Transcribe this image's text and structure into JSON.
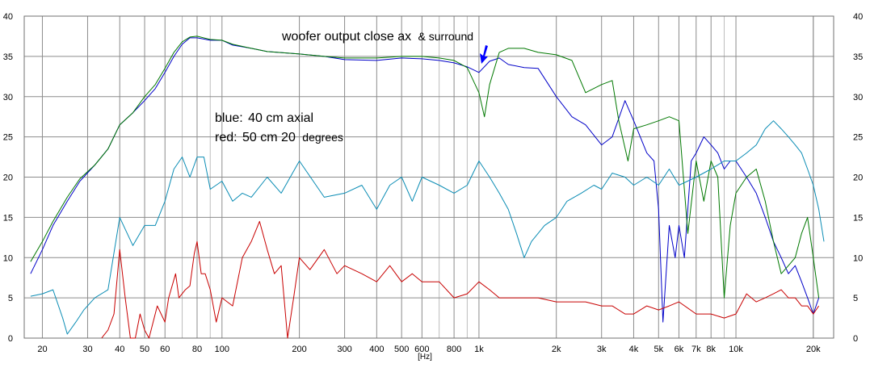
{
  "chart_data": {
    "type": "line",
    "title": "",
    "xlabel": "[Hz]",
    "ylabel": "",
    "x_scale": "log",
    "xlim": [
      17,
      24000
    ],
    "ylim": [
      0,
      40
    ],
    "grid": true,
    "x_tick_labels": [
      {
        "value": 20,
        "label": "20"
      },
      {
        "value": 30,
        "label": "30"
      },
      {
        "value": 40,
        "label": "40"
      },
      {
        "value": 50,
        "label": "50"
      },
      {
        "value": 60,
        "label": "60"
      },
      {
        "value": 80,
        "label": "80"
      },
      {
        "value": 100,
        "label": "100"
      },
      {
        "value": 200,
        "label": "200"
      },
      {
        "value": 300,
        "label": "300"
      },
      {
        "value": 400,
        "label": "400"
      },
      {
        "value": 500,
        "label": "500"
      },
      {
        "value": 600,
        "label": "600"
      },
      {
        "value": 800,
        "label": "800"
      },
      {
        "value": 1000,
        "label": "1k"
      },
      {
        "value": 2000,
        "label": "2k"
      },
      {
        "value": 3000,
        "label": "3k"
      },
      {
        "value": 4000,
        "label": "4k"
      },
      {
        "value": 5000,
        "label": "5k"
      },
      {
        "value": 6000,
        "label": "6k"
      },
      {
        "value": 7000,
        "label": "7k"
      },
      {
        "value": 8000,
        "label": "8k"
      },
      {
        "value": 10000,
        "label": "10k"
      },
      {
        "value": 20000,
        "label": "20k"
      }
    ],
    "y_ticks": [
      0,
      5,
      10,
      15,
      20,
      25,
      30,
      35,
      40
    ],
    "annotations": {
      "top": "woofer output close ax",
      "top_small": "& surround",
      "blue_prefix": "blue:",
      "blue_main": "40 cm axial",
      "red_prefix": "red:",
      "red_main": "50 cm 20",
      "red_suffix": "degrees",
      "arrow_at_hz": 1000
    },
    "series": [
      {
        "color": "#0000c8",
        "points": [
          [
            18,
            8
          ],
          [
            20,
            11
          ],
          [
            22,
            14
          ],
          [
            25,
            17
          ],
          [
            28,
            19.5
          ],
          [
            32,
            21.5
          ],
          [
            36,
            23.5
          ],
          [
            40,
            26.5
          ],
          [
            45,
            28
          ],
          [
            50,
            29.5
          ],
          [
            55,
            31
          ],
          [
            60,
            33
          ],
          [
            65,
            35
          ],
          [
            70,
            36.5
          ],
          [
            75,
            37.3
          ],
          [
            80,
            37.3
          ],
          [
            90,
            37
          ],
          [
            100,
            37
          ],
          [
            110,
            36.4
          ],
          [
            130,
            36
          ],
          [
            150,
            35.6
          ],
          [
            200,
            35.3
          ],
          [
            250,
            35
          ],
          [
            300,
            34.6
          ],
          [
            400,
            34.5
          ],
          [
            500,
            34.8
          ],
          [
            600,
            34.7
          ],
          [
            700,
            34.5
          ],
          [
            800,
            34.2
          ],
          [
            900,
            33.7
          ],
          [
            1000,
            33
          ],
          [
            1100,
            34.4
          ],
          [
            1200,
            34.8
          ],
          [
            1300,
            34
          ],
          [
            1500,
            33.6
          ],
          [
            1700,
            33.5
          ],
          [
            2000,
            30
          ],
          [
            2300,
            27.5
          ],
          [
            2600,
            26.5
          ],
          [
            3000,
            24
          ],
          [
            3300,
            25
          ],
          [
            3700,
            29.5
          ],
          [
            4000,
            27
          ],
          [
            4500,
            23
          ],
          [
            4800,
            22
          ],
          [
            5000,
            16
          ],
          [
            5200,
            2
          ],
          [
            5500,
            14
          ],
          [
            5800,
            10
          ],
          [
            6000,
            14
          ],
          [
            6300,
            10
          ],
          [
            6700,
            22
          ],
          [
            7000,
            23
          ],
          [
            7500,
            25
          ],
          [
            8000,
            24
          ],
          [
            8500,
            23
          ],
          [
            9000,
            21
          ],
          [
            9500,
            22
          ],
          [
            10000,
            22
          ],
          [
            11000,
            20
          ],
          [
            12000,
            18
          ],
          [
            13000,
            15
          ],
          [
            14000,
            12
          ],
          [
            15000,
            10
          ],
          [
            16000,
            8
          ],
          [
            17000,
            9
          ],
          [
            18000,
            7
          ],
          [
            19000,
            5
          ],
          [
            20000,
            3
          ],
          [
            21000,
            5
          ]
        ]
      },
      {
        "color": "#007800",
        "points": [
          [
            18,
            9.5
          ],
          [
            20,
            12
          ],
          [
            22,
            14.5
          ],
          [
            25,
            17.5
          ],
          [
            28,
            19.8
          ],
          [
            32,
            21.5
          ],
          [
            36,
            23.5
          ],
          [
            40,
            26.5
          ],
          [
            45,
            28
          ],
          [
            50,
            30
          ],
          [
            55,
            31.5
          ],
          [
            60,
            33.5
          ],
          [
            65,
            35.5
          ],
          [
            70,
            36.8
          ],
          [
            75,
            37.4
          ],
          [
            80,
            37.5
          ],
          [
            90,
            37.1
          ],
          [
            100,
            37
          ],
          [
            110,
            36.5
          ],
          [
            130,
            36
          ],
          [
            150,
            35.6
          ],
          [
            200,
            35.3
          ],
          [
            250,
            35
          ],
          [
            300,
            34.8
          ],
          [
            400,
            34.8
          ],
          [
            500,
            35
          ],
          [
            600,
            35
          ],
          [
            700,
            34.8
          ],
          [
            800,
            34.5
          ],
          [
            900,
            33.6
          ],
          [
            1000,
            30.5
          ],
          [
            1050,
            27.5
          ],
          [
            1100,
            31.5
          ],
          [
            1200,
            35.5
          ],
          [
            1300,
            36
          ],
          [
            1500,
            36
          ],
          [
            1700,
            35.5
          ],
          [
            2000,
            35.2
          ],
          [
            2300,
            34.5
          ],
          [
            2600,
            30.5
          ],
          [
            3000,
            31.5
          ],
          [
            3300,
            32
          ],
          [
            3500,
            27
          ],
          [
            3800,
            22
          ],
          [
            4000,
            26
          ],
          [
            4500,
            26.5
          ],
          [
            5000,
            27
          ],
          [
            5500,
            27.5
          ],
          [
            6000,
            27
          ],
          [
            6500,
            13
          ],
          [
            7000,
            22
          ],
          [
            7500,
            17
          ],
          [
            8000,
            22
          ],
          [
            8500,
            20
          ],
          [
            9000,
            5
          ],
          [
            9500,
            14
          ],
          [
            10000,
            18
          ],
          [
            11000,
            20
          ],
          [
            12000,
            21
          ],
          [
            13000,
            17
          ],
          [
            14000,
            12
          ],
          [
            15000,
            8
          ],
          [
            16000,
            9
          ],
          [
            17000,
            10
          ],
          [
            18000,
            13
          ],
          [
            19000,
            15
          ],
          [
            20000,
            10
          ],
          [
            21000,
            5
          ]
        ]
      },
      {
        "color": "#0a8cb4",
        "points": [
          [
            18,
            5.2
          ],
          [
            20,
            5.5
          ],
          [
            22,
            6
          ],
          [
            24,
            2.5
          ],
          [
            25,
            0.5
          ],
          [
            27,
            2
          ],
          [
            29,
            3.5
          ],
          [
            32,
            5
          ],
          [
            36,
            6
          ],
          [
            40,
            15
          ],
          [
            45,
            11.5
          ],
          [
            50,
            14
          ],
          [
            55,
            14
          ],
          [
            60,
            17
          ],
          [
            65,
            21
          ],
          [
            70,
            22.5
          ],
          [
            75,
            20
          ],
          [
            80,
            22.5
          ],
          [
            85,
            22.5
          ],
          [
            90,
            18.5
          ],
          [
            100,
            19.5
          ],
          [
            110,
            17
          ],
          [
            120,
            18
          ],
          [
            130,
            17.5
          ],
          [
            150,
            20
          ],
          [
            170,
            18
          ],
          [
            200,
            22
          ],
          [
            250,
            17.5
          ],
          [
            300,
            18
          ],
          [
            350,
            19
          ],
          [
            400,
            16
          ],
          [
            450,
            19
          ],
          [
            500,
            20
          ],
          [
            550,
            17
          ],
          [
            600,
            20
          ],
          [
            700,
            19
          ],
          [
            800,
            18
          ],
          [
            900,
            19
          ],
          [
            1000,
            22
          ],
          [
            1100,
            20
          ],
          [
            1200,
            18
          ],
          [
            1300,
            16
          ],
          [
            1400,
            13
          ],
          [
            1500,
            10
          ],
          [
            1600,
            12
          ],
          [
            1800,
            14
          ],
          [
            2000,
            15
          ],
          [
            2200,
            17
          ],
          [
            2500,
            18
          ],
          [
            2800,
            19
          ],
          [
            3000,
            18.5
          ],
          [
            3300,
            20.5
          ],
          [
            3700,
            20
          ],
          [
            4000,
            19
          ],
          [
            4500,
            20
          ],
          [
            5000,
            19
          ],
          [
            5500,
            21
          ],
          [
            6000,
            19
          ],
          [
            7000,
            20
          ],
          [
            8000,
            21
          ],
          [
            9000,
            22
          ],
          [
            10000,
            22
          ],
          [
            11000,
            23
          ],
          [
            12000,
            24
          ],
          [
            13000,
            26
          ],
          [
            14000,
            27
          ],
          [
            15000,
            26
          ],
          [
            16000,
            25
          ],
          [
            17000,
            24
          ],
          [
            18000,
            23
          ],
          [
            19000,
            21
          ],
          [
            20000,
            19
          ],
          [
            21000,
            16
          ],
          [
            22000,
            12
          ]
        ]
      },
      {
        "color": "#c80000",
        "points": [
          [
            34,
            0
          ],
          [
            36,
            1
          ],
          [
            38,
            3
          ],
          [
            40,
            11
          ],
          [
            42,
            5
          ],
          [
            44,
            0
          ],
          [
            46,
            0
          ],
          [
            48,
            3
          ],
          [
            50,
            1
          ],
          [
            52,
            0
          ],
          [
            56,
            4
          ],
          [
            60,
            2
          ],
          [
            62,
            5
          ],
          [
            66,
            8
          ],
          [
            68,
            5
          ],
          [
            72,
            6
          ],
          [
            75,
            6.5
          ],
          [
            78,
            10.5
          ],
          [
            80,
            12
          ],
          [
            83,
            8
          ],
          [
            86,
            8
          ],
          [
            90,
            6
          ],
          [
            95,
            2
          ],
          [
            100,
            5
          ],
          [
            110,
            4
          ],
          [
            120,
            10
          ],
          [
            130,
            12
          ],
          [
            140,
            14.5
          ],
          [
            150,
            11
          ],
          [
            160,
            8
          ],
          [
            170,
            9
          ],
          [
            180,
            0
          ],
          [
            190,
            5
          ],
          [
            200,
            10
          ],
          [
            220,
            8.5
          ],
          [
            250,
            11
          ],
          [
            280,
            8
          ],
          [
            300,
            9
          ],
          [
            350,
            8
          ],
          [
            400,
            7
          ],
          [
            450,
            9
          ],
          [
            500,
            7
          ],
          [
            550,
            8
          ],
          [
            600,
            7
          ],
          [
            700,
            7
          ],
          [
            800,
            5
          ],
          [
            900,
            5.5
          ],
          [
            1000,
            7
          ],
          [
            1100,
            6
          ],
          [
            1200,
            5
          ],
          [
            1300,
            5
          ],
          [
            1500,
            5
          ],
          [
            1700,
            5
          ],
          [
            2000,
            4.5
          ],
          [
            2300,
            4.5
          ],
          [
            2600,
            4.5
          ],
          [
            3000,
            4
          ],
          [
            3300,
            4
          ],
          [
            3700,
            3
          ],
          [
            4000,
            3
          ],
          [
            4500,
            4
          ],
          [
            5000,
            3.5
          ],
          [
            5500,
            4
          ],
          [
            6000,
            4.5
          ],
          [
            7000,
            3
          ],
          [
            8000,
            3
          ],
          [
            9000,
            2.5
          ],
          [
            10000,
            3
          ],
          [
            11000,
            5.5
          ],
          [
            12000,
            4.5
          ],
          [
            13000,
            5
          ],
          [
            14000,
            5.5
          ],
          [
            15000,
            6
          ],
          [
            16000,
            5
          ],
          [
            17000,
            5
          ],
          [
            18000,
            4
          ],
          [
            19000,
            4
          ],
          [
            20000,
            3
          ],
          [
            21000,
            4
          ]
        ]
      }
    ]
  }
}
